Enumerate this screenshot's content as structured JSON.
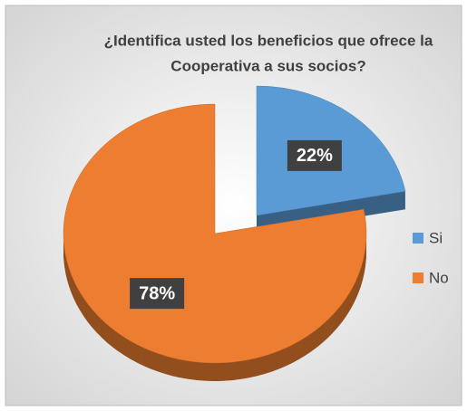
{
  "chart_data": {
    "type": "pie",
    "title": [
      "¿Identifica usted  los beneficios que ofrece la",
      "Cooperativa a sus socios?"
    ],
    "categories": [
      "Si",
      "No"
    ],
    "values": [
      22,
      78
    ],
    "value_labels": [
      "22%",
      "78%"
    ],
    "colors": [
      "#5b9bd5",
      "#ed7d31"
    ],
    "legend": "right"
  }
}
